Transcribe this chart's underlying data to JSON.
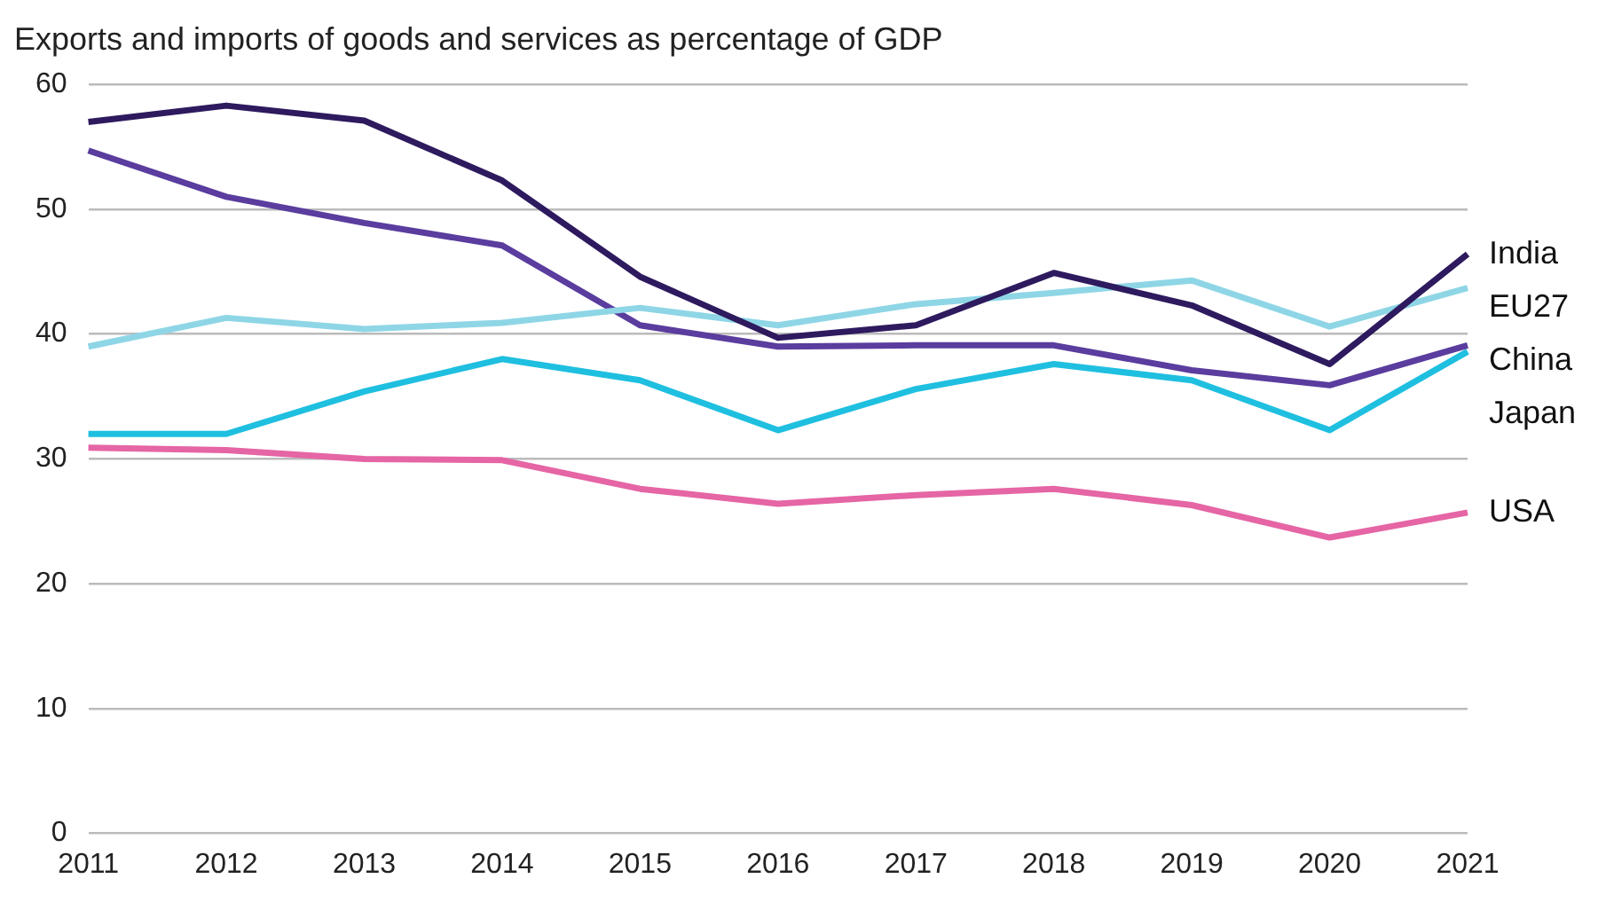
{
  "chart_data": {
    "type": "line",
    "title": "Exports and imports of goods and services as percentage of GDP",
    "categories": [
      "2011",
      "2012",
      "2013",
      "2014",
      "2015",
      "2016",
      "2017",
      "2018",
      "2019",
      "2020",
      "2021"
    ],
    "series": [
      {
        "name": "India",
        "color": "#2e1a5e",
        "values": [
          57.0,
          58.3,
          57.1,
          52.3,
          44.6,
          39.7,
          40.7,
          44.9,
          42.3,
          37.6,
          46.4
        ]
      },
      {
        "name": "EU27",
        "color": "#8ed6e6",
        "values": [
          39.0,
          41.3,
          40.4,
          40.9,
          42.1,
          40.7,
          42.4,
          43.3,
          44.3,
          40.6,
          43.7
        ]
      },
      {
        "name": "China",
        "color": "#5a3d9e",
        "values": [
          54.7,
          51.0,
          48.9,
          47.1,
          40.7,
          39.0,
          39.1,
          39.1,
          37.1,
          35.9,
          39.1
        ]
      },
      {
        "name": "Japan",
        "color": "#1fbfe0",
        "values": [
          32.0,
          32.0,
          35.4,
          38.0,
          36.3,
          32.3,
          35.6,
          37.6,
          36.3,
          32.3,
          38.6
        ]
      },
      {
        "name": "USA",
        "color": "#e565a5",
        "values": [
          30.9,
          30.7,
          30.0,
          29.9,
          27.6,
          26.4,
          27.1,
          27.6,
          26.3,
          23.7,
          25.7
        ]
      }
    ],
    "ylim": [
      0,
      60
    ],
    "yticks": [
      0,
      10,
      20,
      30,
      40,
      50,
      60
    ],
    "grid": "y",
    "legend": false,
    "marker": "none",
    "line_style": "solid"
  }
}
